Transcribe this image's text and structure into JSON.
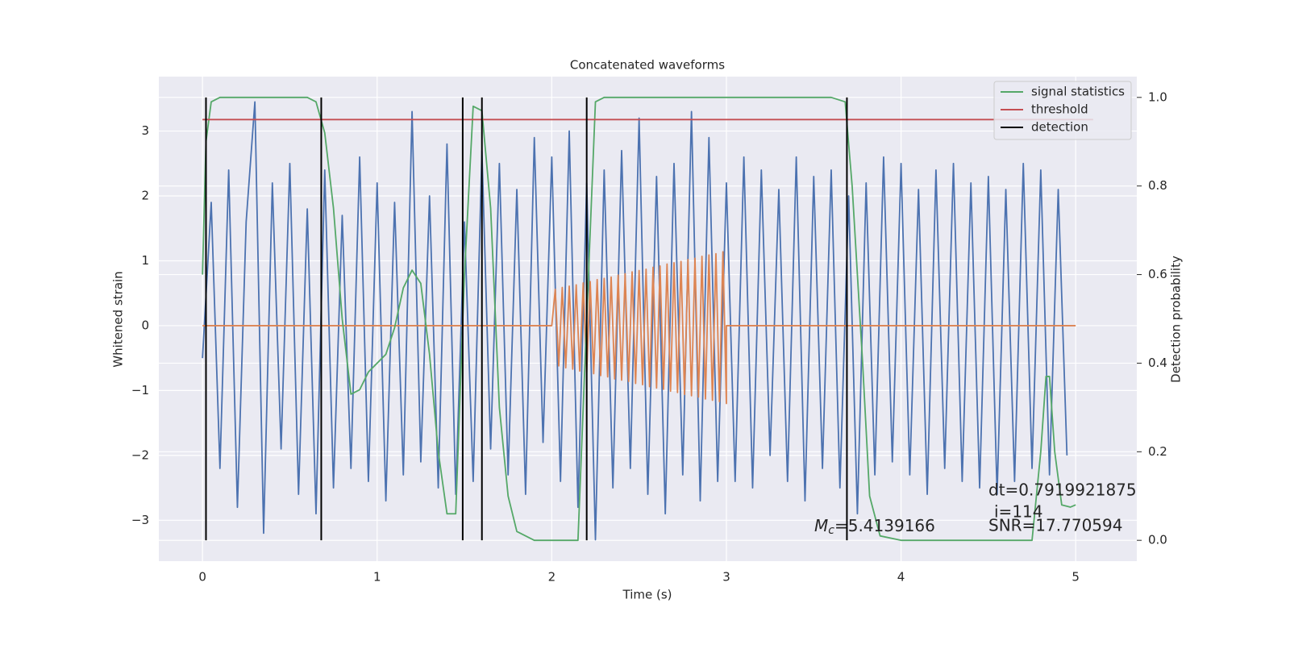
{
  "chart_data": {
    "type": "line",
    "title": "Concatenated waveforms",
    "xlabel": "Time (s)",
    "ylabel": "Whitened strain",
    "y2label": "Detection probability",
    "xlim": [
      -0.25,
      5.35
    ],
    "xticks": [
      0,
      1,
      2,
      3,
      4,
      5
    ],
    "ylim": [
      -3.63,
      3.84
    ],
    "yticks": [
      {
        "value": -3,
        "label": "−3"
      },
      {
        "value": -2,
        "label": "−2"
      },
      {
        "value": -1,
        "label": "−1"
      },
      0,
      1,
      2,
      3
    ],
    "y2lim": [
      -0.047,
      1.047
    ],
    "y2ticks": [
      {
        "value": 0,
        "label": "0.0"
      },
      0.2,
      0.4,
      0.6,
      0.8,
      {
        "value": 1,
        "label": "1.0"
      }
    ],
    "grid": true,
    "legend": "upper right",
    "series": [
      {
        "color": "#4c72b0",
        "x": [
          0,
          0.05,
          0.1,
          0.15,
          0.2,
          0.25,
          0.3,
          0.35,
          0.4,
          0.45,
          0.5,
          0.55,
          0.6,
          0.65,
          0.7,
          0.75,
          0.8,
          0.85,
          0.9,
          0.95,
          1,
          1.05,
          1.1,
          1.15,
          1.2,
          1.25,
          1.3,
          1.35,
          1.4,
          1.45,
          1.5,
          1.55,
          1.6,
          1.65,
          1.7,
          1.75,
          1.8,
          1.85,
          1.9,
          1.95,
          2,
          2.05,
          2.1,
          2.15,
          2.2,
          2.25,
          2.3,
          2.35,
          2.4,
          2.45,
          2.5,
          2.55,
          2.6,
          2.65,
          2.7,
          2.75,
          2.8,
          2.85,
          2.9,
          2.95,
          3,
          3.05,
          3.1,
          3.15,
          3.2,
          3.25,
          3.3,
          3.35,
          3.4,
          3.45,
          3.5,
          3.55,
          3.6,
          3.65,
          3.7,
          3.75,
          3.8,
          3.85,
          3.9,
          3.95,
          4,
          4.05,
          4.1,
          4.15,
          4.2,
          4.25,
          4.3,
          4.35,
          4.4,
          4.45,
          4.5,
          4.55,
          4.6,
          4.65,
          4.7,
          4.75,
          4.8,
          4.85,
          4.9,
          4.95
        ],
        "values": [
          -0.5,
          1.9,
          -2.2,
          2.4,
          -2.8,
          1.6,
          3.45,
          -3.2,
          2.2,
          -1.9,
          2.5,
          -2.6,
          1.8,
          -2.9,
          2.4,
          -2.5,
          1.7,
          -2.2,
          2.6,
          -2.4,
          2.2,
          -2.7,
          1.9,
          -2.3,
          3.3,
          -2.1,
          2.0,
          -2.5,
          2.8,
          -2.6,
          1.6,
          -2.4,
          2.7,
          -1.9,
          2.5,
          -2.3,
          2.1,
          -2.6,
          2.9,
          -1.8,
          2.6,
          -2.4,
          3.0,
          -2.8,
          2.2,
          -3.3,
          2.4,
          -2.5,
          2.7,
          -2.2,
          3.2,
          -2.6,
          2.3,
          -2.9,
          2.5,
          -2.3,
          3.3,
          -2.7,
          2.9,
          -2.4,
          2.2,
          -2.4,
          2.6,
          -2.5,
          2.4,
          -2.0,
          2.1,
          -2.4,
          2.6,
          -2.7,
          2.3,
          -2.2,
          2.4,
          -2.5,
          2.0,
          -2.9,
          2.2,
          -2.3,
          2.6,
          -2.1,
          2.5,
          -2.3,
          2.1,
          -2.6,
          2.4,
          -2.2,
          2.5,
          -2.4,
          2.2,
          -2.5,
          2.3,
          -2.6,
          2.1,
          -2.4,
          2.5,
          -2.2,
          2.4,
          -2.3,
          2.1,
          -2.0
        ]
      },
      {
        "color": "#dd8452",
        "x": [
          0,
          2,
          2.02,
          2.04,
          2.06,
          2.08,
          2.1,
          2.12,
          2.14,
          2.16,
          2.18,
          2.2,
          2.22,
          2.24,
          2.26,
          2.28,
          2.3,
          2.32,
          2.34,
          2.36,
          2.38,
          2.4,
          2.42,
          2.44,
          2.46,
          2.48,
          2.5,
          2.52,
          2.54,
          2.56,
          2.58,
          2.6,
          2.62,
          2.64,
          2.66,
          2.68,
          2.7,
          2.72,
          2.74,
          2.76,
          2.78,
          2.8,
          2.82,
          2.84,
          2.86,
          2.88,
          2.9,
          2.92,
          2.94,
          2.96,
          2.98,
          3,
          3,
          5
        ],
        "values": [
          0,
          0,
          0.56,
          -0.62,
          0.59,
          -0.65,
          0.61,
          -0.67,
          0.63,
          -0.7,
          0.66,
          -0.72,
          0.68,
          -0.74,
          0.71,
          -0.77,
          0.73,
          -0.79,
          0.75,
          -0.82,
          0.78,
          -0.84,
          0.8,
          -0.86,
          0.83,
          -0.89,
          0.85,
          -0.91,
          0.87,
          -0.94,
          0.9,
          -0.96,
          0.92,
          -0.98,
          0.95,
          -1.01,
          0.97,
          -1.03,
          0.99,
          -1.06,
          1.02,
          -1.08,
          1.04,
          -1.1,
          1.07,
          -1.13,
          1.09,
          -1.15,
          1.11,
          -1.17,
          1.14,
          -1.2,
          0,
          0
        ]
      },
      {
        "name": "signal statistics",
        "color": "#55a868",
        "axis": "y2",
        "x": [
          0,
          0.02,
          0.05,
          0.1,
          0.6,
          0.65,
          0.7,
          0.75,
          0.8,
          0.85,
          0.9,
          0.95,
          1,
          1.05,
          1.1,
          1.15,
          1.2,
          1.25,
          1.3,
          1.35,
          1.4,
          1.45,
          1.5,
          1.55,
          1.6,
          1.65,
          1.7,
          1.75,
          1.8,
          1.9,
          2,
          2.15,
          2.2,
          2.25,
          2.3,
          3.6,
          3.68,
          3.72,
          3.78,
          3.82,
          3.88,
          4,
          4.75,
          4.8,
          4.83,
          4.85,
          4.88,
          4.92,
          4.97,
          5
        ],
        "values": [
          0.6,
          0.9,
          0.99,
          1,
          1,
          0.99,
          0.92,
          0.75,
          0.5,
          0.33,
          0.34,
          0.38,
          0.4,
          0.42,
          0.48,
          0.57,
          0.61,
          0.58,
          0.42,
          0.2,
          0.06,
          0.06,
          0.6,
          0.98,
          0.97,
          0.75,
          0.3,
          0.1,
          0.02,
          0,
          0,
          0,
          0.5,
          0.99,
          1,
          1,
          0.99,
          0.8,
          0.4,
          0.1,
          0.01,
          0,
          0,
          0.2,
          0.37,
          0.37,
          0.2,
          0.08,
          0.075,
          0.08
        ]
      },
      {
        "name": "threshold",
        "color": "#c44e52",
        "axis": "y2",
        "x": [
          0,
          5.1
        ],
        "values": [
          0.95,
          0.95
        ]
      },
      {
        "name": "detection",
        "color": "#000000",
        "axis": "y2",
        "type": "vlines",
        "x": [
          0.02,
          0.68,
          1.49,
          1.6,
          2.2,
          3.69
        ],
        "ymin": 0,
        "ymax": 1
      }
    ],
    "annotations": {
      "dt": "dt=0.7919921875",
      "i": "i=114",
      "snr": "SNR=17.770594",
      "mc": {
        "symbol": "M",
        "subscript": "c",
        "text": "=5.4139166"
      }
    }
  }
}
